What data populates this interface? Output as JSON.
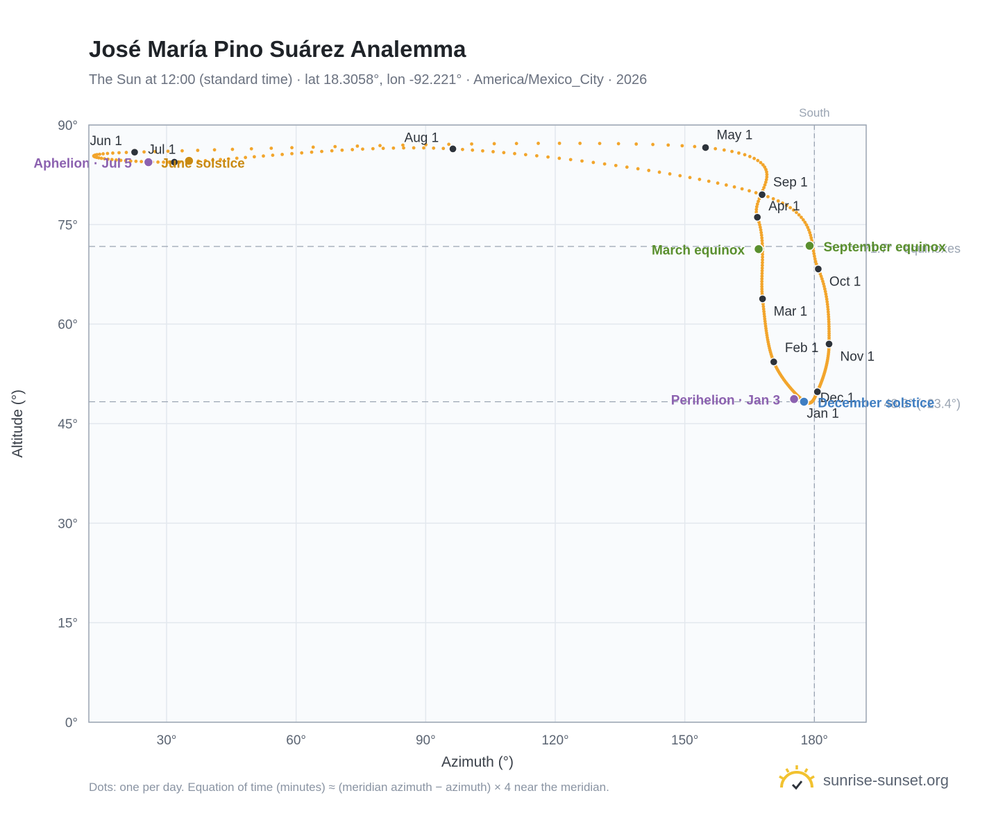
{
  "title": "José María Pino Suárez Analemma",
  "subtitle": "The Sun at 12:00 (standard time) · lat 18.3058°, lon -92.221° · America/Mexico_City · 2026",
  "footnote": "Dots: one per day. Equation of time (minutes) ≈ (meridian azimuth − azimuth) × 4 near the meridian.",
  "brand": {
    "name": "sunrise-sunset.org",
    "logo_icon": "sunrise-logo-icon"
  },
  "colors": {
    "path": "#f2a52c",
    "month_marker": "#2d333b",
    "equinox": "#5a8f2e",
    "solstice_june": "#c98a12",
    "solstice_december": "#3f7ec2",
    "aphelion_perihelion": "#8c62b0",
    "plot_bg": "#f9fbfd",
    "grid": "#e3e8ee",
    "frame": "#9aa4b2",
    "reference": "#9aa4b2"
  },
  "chart_data": {
    "type": "scatter",
    "xlabel": "Azimuth (°)",
    "ylabel": "Altitude (°)",
    "xlim": [
      12,
      192
    ],
    "ylim": [
      0,
      90
    ],
    "x_ticks": [
      30,
      60,
      90,
      120,
      150,
      180
    ],
    "x_tick_labels": [
      "30°",
      "60°",
      "90°",
      "120°",
      "150°",
      "180°"
    ],
    "y_ticks": [
      0,
      15,
      30,
      45,
      60,
      75,
      90
    ],
    "y_tick_labels": [
      "0°",
      "15°",
      "30°",
      "45°",
      "60°",
      "75°",
      "90°"
    ],
    "grid": true,
    "south_line": {
      "azimuth": 180,
      "label": "South"
    },
    "equinox_line": {
      "altitude": 71.7,
      "label": "71.7° · equinoxes"
    },
    "solstice_line": {
      "altitude": 48.3,
      "label": "48.3° (↓23.4°)"
    },
    "series_note": "one dot per day, 365 days",
    "months": [
      {
        "label": "Jan 1",
        "az": 177.6,
        "alt": 48.4
      },
      {
        "label": "Feb 1",
        "az": 170.6,
        "alt": 54.3
      },
      {
        "label": "Mar 1",
        "az": 168.0,
        "alt": 63.8
      },
      {
        "label": "Apr 1",
        "az": 166.8,
        "alt": 76.1
      },
      {
        "label": "May 1",
        "az": 154.8,
        "alt": 86.6
      },
      {
        "label": "Jun 1",
        "az": 22.6,
        "alt": 85.9
      },
      {
        "label": "Jul 1",
        "az": 31.8,
        "alt": 84.4
      },
      {
        "label": "Aug 1",
        "az": 96.3,
        "alt": 86.4
      },
      {
        "label": "Sep 1",
        "az": 167.9,
        "alt": 79.5
      },
      {
        "label": "Oct 1",
        "az": 180.9,
        "alt": 68.3
      },
      {
        "label": "Nov 1",
        "az": 183.4,
        "alt": 57.0
      },
      {
        "label": "Dec 1",
        "az": 180.7,
        "alt": 49.8
      }
    ],
    "events": [
      {
        "label": "March equinox",
        "az": 167.1,
        "alt": 71.3,
        "kind": "equinox"
      },
      {
        "label": "September equinox",
        "az": 178.9,
        "alt": 71.8,
        "kind": "equinox"
      },
      {
        "label": "June solstice",
        "az": 35.2,
        "alt": 84.6,
        "kind": "solstice_june"
      },
      {
        "label": "December solstice",
        "az": 177.6,
        "alt": 48.3,
        "kind": "solstice_december"
      },
      {
        "label": "Aphelion · Jul 5",
        "az": 25.8,
        "alt": 84.4,
        "kind": "aphelion"
      },
      {
        "label": "Perihelion · Jan 3",
        "az": 175.3,
        "alt": 48.7,
        "kind": "perihelion"
      }
    ]
  }
}
